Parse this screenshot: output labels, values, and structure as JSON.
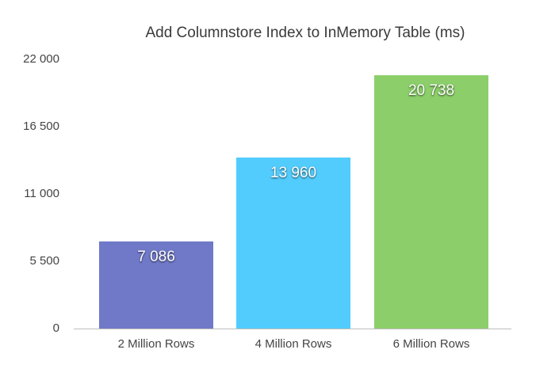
{
  "chart_data": {
    "type": "bar",
    "title": "Add Columnstore Index to InMemory Table (ms)",
    "xlabel": "",
    "ylabel": "",
    "categories": [
      "2 Million Rows",
      "4 Million Rows",
      "6 Million Rows"
    ],
    "values": [
      7086,
      13960,
      20738
    ],
    "value_labels": [
      "7 086",
      "13 960",
      "20 738"
    ],
    "colors": [
      "#7079c8",
      "#52ccfd",
      "#8ccf6a"
    ],
    "ylim": [
      0,
      22000
    ],
    "yticks": [
      0,
      5500,
      11000,
      16500,
      22000
    ],
    "ytick_labels": [
      "0",
      "5 500",
      "11 000",
      "16 500",
      "22 000"
    ],
    "grid": false,
    "legend": null
  }
}
